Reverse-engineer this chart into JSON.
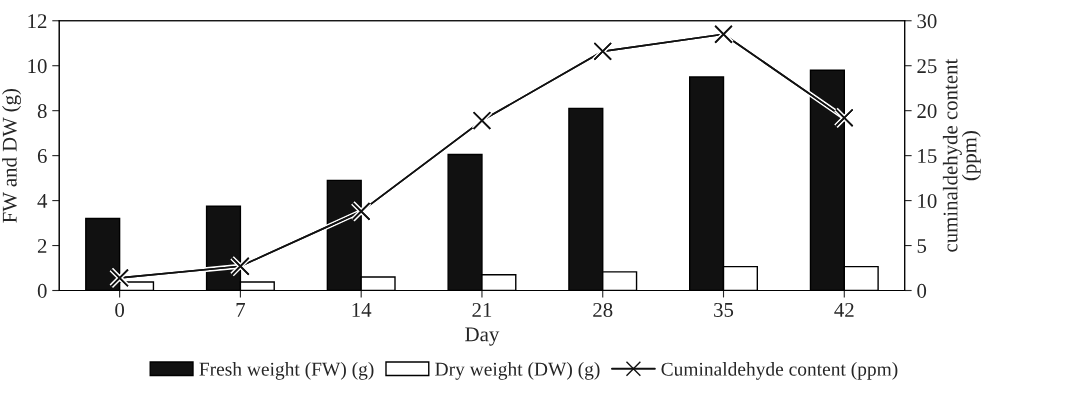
{
  "chart_data": {
    "type": "bar",
    "categories": [
      "0",
      "7",
      "14",
      "21",
      "28",
      "35",
      "42"
    ],
    "xlabel": "Day",
    "ylabel": "FW and DW (g)",
    "y2label": "cuminaldehyde content\n(ppm)",
    "ylim": [
      0,
      12
    ],
    "yticks": [
      0,
      2,
      4,
      6,
      8,
      10,
      12
    ],
    "y2lim": [
      0,
      30
    ],
    "y2ticks": [
      0,
      5,
      10,
      15,
      20,
      25,
      30
    ],
    "legend": "bottom",
    "grid": false,
    "series": [
      {
        "name": "Fresh weight (FW) (g)",
        "color": "#111111",
        "values": [
          3.2,
          3.75,
          4.9,
          6.05,
          8.1,
          9.5,
          9.8
        ]
      },
      {
        "name": "Dry weight (DW) (g)",
        "color": "#ffffff",
        "values": [
          0.38,
          0.38,
          0.6,
          0.7,
          0.83,
          1.06,
          1.06
        ]
      },
      {
        "name": "Cuminaldehyde content (ppm)",
        "color": "#111111",
        "type": "line",
        "axis": "y2",
        "marker": "cross",
        "values": [
          1.4,
          2.7,
          8.8,
          18.9,
          26.6,
          28.5,
          19.2
        ]
      }
    ]
  }
}
